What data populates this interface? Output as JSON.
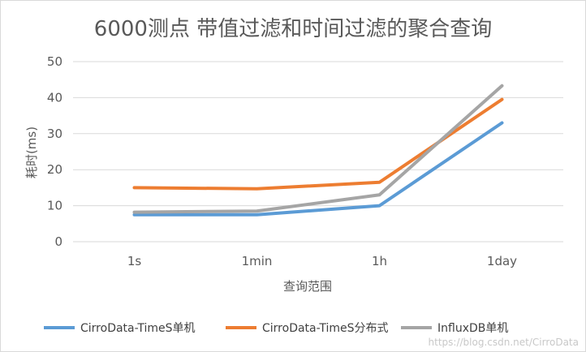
{
  "chart_data": {
    "type": "line",
    "title": "6000测点 带值过滤和时间过滤的聚合查询",
    "xlabel": "查询范围",
    "ylabel": "耗时(ms)",
    "categories": [
      "1s",
      "1min",
      "1h",
      "1day"
    ],
    "ylim": [
      0,
      50
    ],
    "yticks": [
      0,
      10,
      20,
      30,
      40,
      50
    ],
    "grid": true,
    "legend": "bottom",
    "series": [
      {
        "name": "CirroData-TimeS单机",
        "color": "#5b9bd5",
        "values": [
          7.5,
          7.5,
          10,
          33
        ]
      },
      {
        "name": "CirroData-TimeS分布式",
        "color": "#ed7d31",
        "values": [
          15,
          14.7,
          16.5,
          39.5
        ]
      },
      {
        "name": "InfluxDB单机",
        "color": "#a5a5a5",
        "values": [
          8.2,
          8.5,
          13,
          43.3
        ]
      }
    ]
  },
  "watermark": "https://blog.csdn.net/CirroData"
}
